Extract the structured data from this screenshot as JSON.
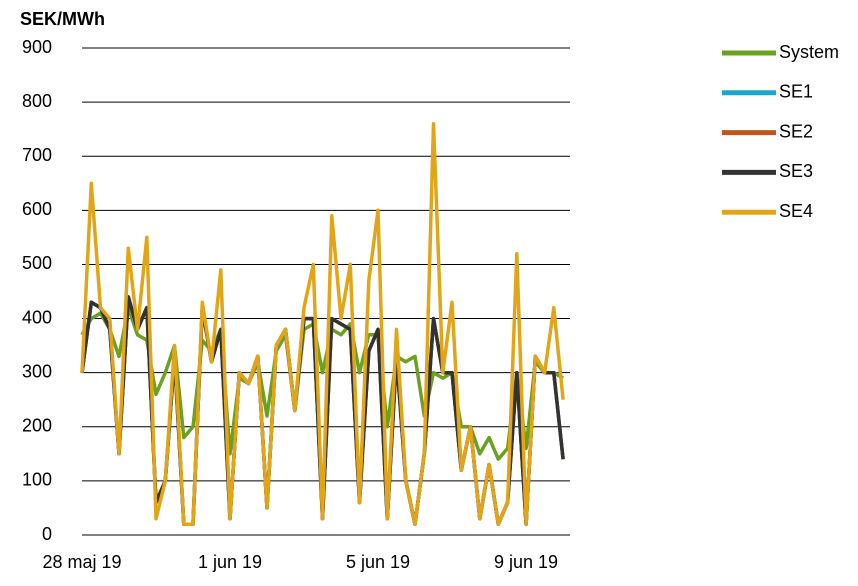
{
  "chart_data": {
    "type": "line",
    "title": "SEK/MWh",
    "categories": [
      "28 maj 19",
      null,
      null,
      null,
      null,
      null,
      null,
      null,
      null,
      null,
      null,
      null,
      null,
      null,
      null,
      null,
      "1 jun 19",
      null,
      null,
      null,
      null,
      null,
      null,
      null,
      null,
      null,
      null,
      null,
      null,
      null,
      null,
      null,
      "5 jun 19",
      null,
      null,
      null,
      null,
      null,
      null,
      null,
      null,
      null,
      null,
      null,
      null,
      null,
      null,
      null,
      "9 jun 19",
      null,
      null,
      null,
      null
    ],
    "series": [
      {
        "name": "System",
        "color": "#6aa121",
        "values": [
          370,
          400,
          410,
          380,
          330,
          420,
          370,
          360,
          260,
          300,
          350,
          180,
          200,
          360,
          340,
          380,
          150,
          290,
          280,
          320,
          220,
          340,
          370,
          230,
          380,
          390,
          300,
          380,
          370,
          390,
          300,
          370,
          370,
          200,
          330,
          320,
          330,
          220,
          300,
          290,
          300,
          200,
          200,
          150,
          180,
          140,
          160,
          300,
          160,
          320,
          300,
          300,
          290
        ]
      },
      {
        "name": "SE1",
        "color": "#1aa7cf",
        "values": [
          300,
          430,
          420,
          380,
          150,
          440,
          380,
          420,
          60,
          100,
          330,
          20,
          20,
          420,
          320,
          380,
          30,
          300,
          280,
          330,
          50,
          350,
          380,
          230,
          400,
          400,
          30,
          400,
          390,
          380,
          60,
          340,
          380,
          30,
          330,
          100,
          20,
          150,
          400,
          300,
          300,
          120,
          200,
          30,
          130,
          20,
          60,
          300,
          20,
          330,
          300,
          300,
          140
        ]
      },
      {
        "name": "SE2",
        "color": "#c0561a",
        "values": [
          300,
          430,
          420,
          380,
          150,
          440,
          380,
          420,
          60,
          100,
          330,
          20,
          20,
          420,
          320,
          380,
          30,
          300,
          280,
          330,
          50,
          350,
          380,
          230,
          400,
          400,
          30,
          400,
          390,
          380,
          60,
          340,
          380,
          30,
          330,
          100,
          20,
          150,
          400,
          300,
          300,
          120,
          200,
          30,
          130,
          20,
          60,
          300,
          20,
          330,
          300,
          300,
          140
        ]
      },
      {
        "name": "SE3",
        "color": "#333333",
        "values": [
          300,
          430,
          420,
          380,
          150,
          440,
          380,
          420,
          60,
          100,
          330,
          20,
          20,
          420,
          320,
          380,
          30,
          300,
          280,
          330,
          50,
          350,
          380,
          230,
          400,
          400,
          30,
          400,
          390,
          380,
          60,
          340,
          380,
          30,
          330,
          100,
          20,
          150,
          400,
          300,
          300,
          120,
          200,
          30,
          130,
          20,
          60,
          300,
          20,
          330,
          300,
          300,
          140
        ]
      },
      {
        "name": "SE4",
        "color": "#e3a518",
        "values": [
          300,
          650,
          420,
          400,
          150,
          530,
          380,
          550,
          30,
          100,
          350,
          20,
          20,
          430,
          320,
          490,
          30,
          300,
          280,
          330,
          50,
          350,
          380,
          230,
          420,
          500,
          30,
          590,
          400,
          500,
          60,
          470,
          600,
          30,
          380,
          100,
          20,
          150,
          760,
          300,
          430,
          120,
          200,
          30,
          130,
          20,
          60,
          520,
          20,
          330,
          300,
          420,
          250
        ]
      }
    ],
    "ylim": [
      0,
      900
    ],
    "yticks": [
      0,
      100,
      200,
      300,
      400,
      500,
      600,
      700,
      800,
      900
    ],
    "grid": true
  }
}
